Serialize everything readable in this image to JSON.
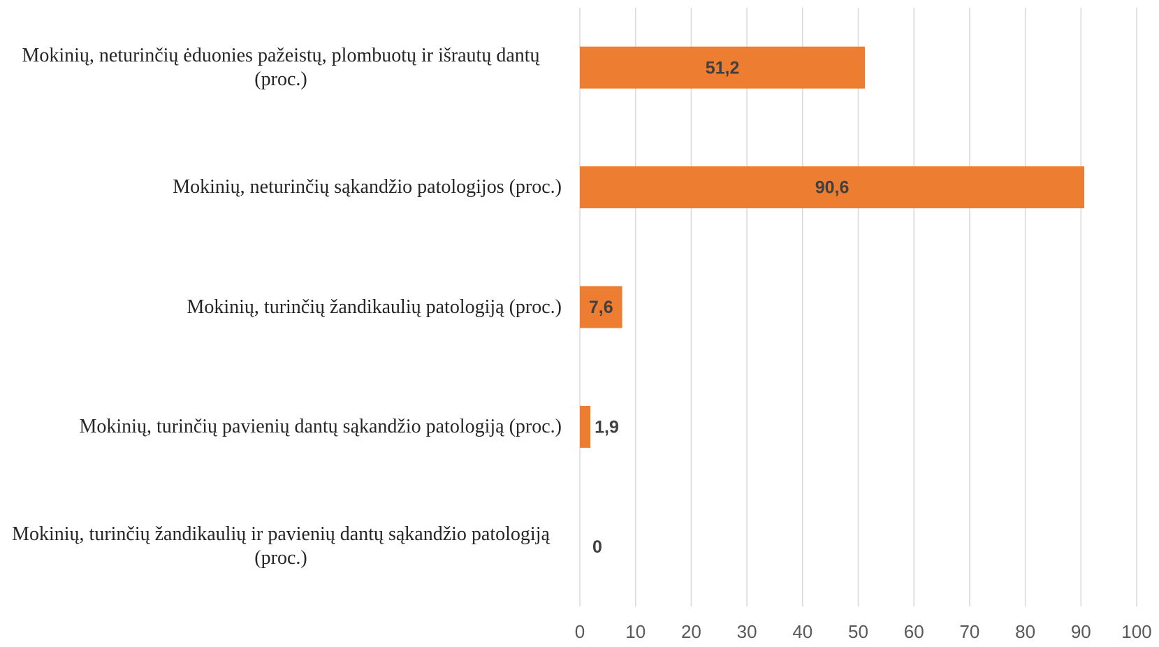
{
  "chart_data": {
    "type": "bar",
    "orientation": "horizontal",
    "categories": [
      "Mokinių, neturinčių ėduonies pažeistų, plombuotų ir išrautų dantų (proc.)",
      "Mokinių, neturinčių sąkandžio patologijos (proc.)",
      "Mokinių, turinčių žandikaulių  patologiją (proc.)",
      "Mokinių, turinčių pavienių dantų sąkandžio patologiją (proc.)",
      "Mokinių, turinčių žandikaulių ir pavienių dantų sąkandžio patologiją (proc.)"
    ],
    "values": [
      51.2,
      90.6,
      7.6,
      1.9,
      0
    ],
    "value_labels": [
      "51,2",
      "90,6",
      "7,6",
      "1,9",
      "0"
    ],
    "color": "#ed7d31",
    "xlim": [
      0,
      100
    ],
    "xticks": [
      0,
      10,
      20,
      30,
      40,
      50,
      60,
      70,
      80,
      90,
      100
    ],
    "grid": true
  }
}
